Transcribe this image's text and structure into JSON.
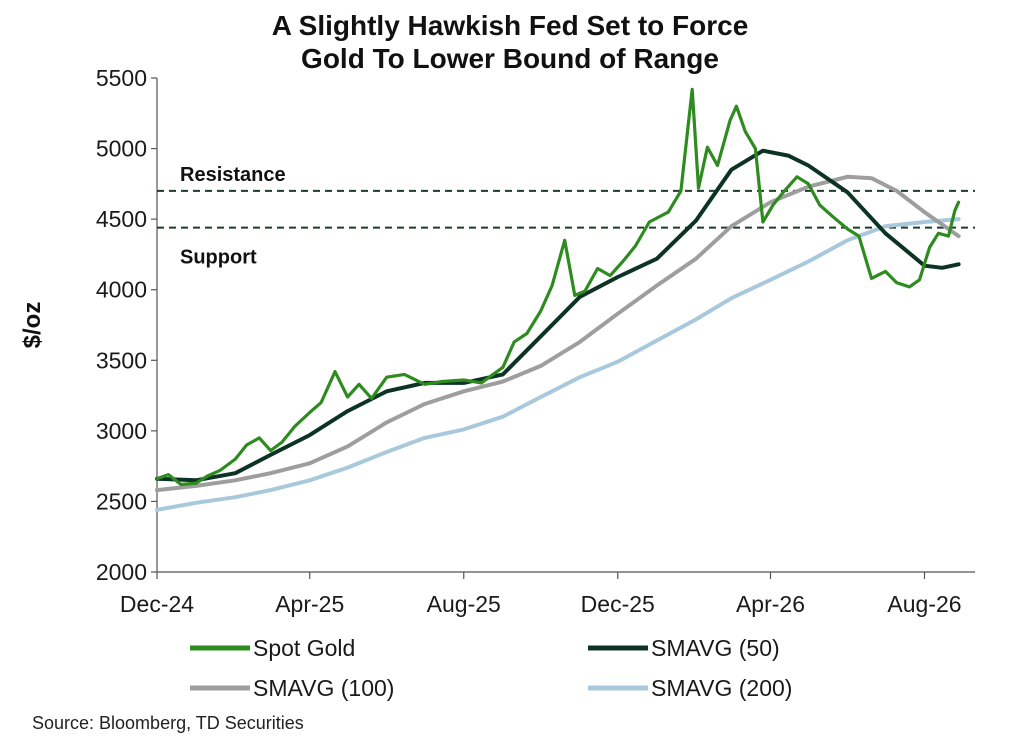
{
  "chart_data": {
    "type": "line",
    "title_lines": [
      "A Slightly Hawkish Fed Set to Force",
      "Gold To Lower Bound of Range"
    ],
    "ylabel": "$/oz",
    "xlabel": "",
    "ylim": [
      2000,
      5500
    ],
    "yticks": [
      2000,
      2500,
      3000,
      3500,
      4000,
      4500,
      5000,
      5500
    ],
    "xlim": [
      "2024-12-01",
      "2026-09-10"
    ],
    "xticks": [
      {
        "date": "2024-12-01",
        "label": "Dec-24"
      },
      {
        "date": "2025-04-01",
        "label": "Apr-25"
      },
      {
        "date": "2025-08-01",
        "label": "Aug-25"
      },
      {
        "date": "2025-12-01",
        "label": "Dec-25"
      },
      {
        "date": "2026-04-01",
        "label": "Apr-26"
      },
      {
        "date": "2026-08-01",
        "label": "Aug-26"
      }
    ],
    "grid": false,
    "legend_placement": "bottom",
    "reference_lines": [
      {
        "label": "Resistance",
        "value": 4700,
        "style": "dashed",
        "color": "#1f3d2b"
      },
      {
        "label": "Support",
        "value": 4440,
        "style": "dashed",
        "color": "#1f3d2b"
      }
    ],
    "series": [
      {
        "name": "Spot Gold",
        "color": "#2e8b1f",
        "points": [
          [
            "2024-12-01",
            2660
          ],
          [
            "2024-12-10",
            2690
          ],
          [
            "2024-12-20",
            2620
          ],
          [
            "2025-01-01",
            2630
          ],
          [
            "2025-01-10",
            2680
          ],
          [
            "2025-01-20",
            2720
          ],
          [
            "2025-02-01",
            2800
          ],
          [
            "2025-02-10",
            2900
          ],
          [
            "2025-02-20",
            2950
          ],
          [
            "2025-03-01",
            2860
          ],
          [
            "2025-03-10",
            2920
          ],
          [
            "2025-03-20",
            3030
          ],
          [
            "2025-04-01",
            3130
          ],
          [
            "2025-04-10",
            3200
          ],
          [
            "2025-04-21",
            3420
          ],
          [
            "2025-05-01",
            3240
          ],
          [
            "2025-05-10",
            3330
          ],
          [
            "2025-05-20",
            3230
          ],
          [
            "2025-06-01",
            3380
          ],
          [
            "2025-06-15",
            3400
          ],
          [
            "2025-07-01",
            3330
          ],
          [
            "2025-07-15",
            3350
          ],
          [
            "2025-08-01",
            3360
          ],
          [
            "2025-08-15",
            3340
          ],
          [
            "2025-09-01",
            3450
          ],
          [
            "2025-09-10",
            3630
          ],
          [
            "2025-09-20",
            3690
          ],
          [
            "2025-10-01",
            3850
          ],
          [
            "2025-10-10",
            4030
          ],
          [
            "2025-10-20",
            4350
          ],
          [
            "2025-10-28",
            3960
          ],
          [
            "2025-11-05",
            3990
          ],
          [
            "2025-11-15",
            4150
          ],
          [
            "2025-11-25",
            4100
          ],
          [
            "2025-12-05",
            4200
          ],
          [
            "2025-12-15",
            4310
          ],
          [
            "2025-12-26",
            4480
          ],
          [
            "2026-01-10",
            4550
          ],
          [
            "2026-01-20",
            4700
          ],
          [
            "2026-01-29",
            5420
          ],
          [
            "2026-02-03",
            4720
          ],
          [
            "2026-02-10",
            5010
          ],
          [
            "2026-02-18",
            4880
          ],
          [
            "2026-02-28",
            5200
          ],
          [
            "2026-03-05",
            5300
          ],
          [
            "2026-03-12",
            5120
          ],
          [
            "2026-03-20",
            5000
          ],
          [
            "2026-03-26",
            4480
          ],
          [
            "2026-04-03",
            4600
          ],
          [
            "2026-04-12",
            4700
          ],
          [
            "2026-04-22",
            4800
          ],
          [
            "2026-05-01",
            4750
          ],
          [
            "2026-05-10",
            4600
          ],
          [
            "2026-05-20",
            4520
          ],
          [
            "2026-06-01",
            4430
          ],
          [
            "2026-06-10",
            4380
          ],
          [
            "2026-06-20",
            4080
          ],
          [
            "2026-07-01",
            4130
          ],
          [
            "2026-07-10",
            4050
          ],
          [
            "2026-07-20",
            4020
          ],
          [
            "2026-07-28",
            4070
          ],
          [
            "2026-08-05",
            4300
          ],
          [
            "2026-08-12",
            4400
          ],
          [
            "2026-08-20",
            4380
          ],
          [
            "2026-08-25",
            4560
          ],
          [
            "2026-08-28",
            4620
          ]
        ]
      },
      {
        "name": "SMAVG (50)",
        "color": "#0d3324",
        "points": [
          [
            "2024-12-01",
            2660
          ],
          [
            "2025-01-01",
            2650
          ],
          [
            "2025-02-01",
            2700
          ],
          [
            "2025-03-01",
            2830
          ],
          [
            "2025-04-01",
            2970
          ],
          [
            "2025-05-01",
            3140
          ],
          [
            "2025-06-01",
            3280
          ],
          [
            "2025-07-01",
            3340
          ],
          [
            "2025-08-01",
            3340
          ],
          [
            "2025-09-01",
            3400
          ],
          [
            "2025-10-01",
            3670
          ],
          [
            "2025-11-01",
            3950
          ],
          [
            "2025-12-01",
            4090
          ],
          [
            "2026-01-01",
            4220
          ],
          [
            "2026-02-01",
            4490
          ],
          [
            "2026-03-01",
            4850
          ],
          [
            "2026-03-26",
            4985
          ],
          [
            "2026-04-15",
            4950
          ],
          [
            "2026-05-01",
            4880
          ],
          [
            "2026-06-01",
            4690
          ],
          [
            "2026-07-01",
            4400
          ],
          [
            "2026-08-01",
            4170
          ],
          [
            "2026-08-15",
            4155
          ],
          [
            "2026-08-28",
            4180
          ]
        ]
      },
      {
        "name": "SMAVG (100)",
        "color": "#9e9e9e",
        "points": [
          [
            "2024-12-01",
            2580
          ],
          [
            "2025-01-01",
            2610
          ],
          [
            "2025-02-01",
            2650
          ],
          [
            "2025-03-01",
            2700
          ],
          [
            "2025-04-01",
            2770
          ],
          [
            "2025-05-01",
            2890
          ],
          [
            "2025-06-01",
            3060
          ],
          [
            "2025-07-01",
            3190
          ],
          [
            "2025-08-01",
            3280
          ],
          [
            "2025-09-01",
            3350
          ],
          [
            "2025-10-01",
            3460
          ],
          [
            "2025-11-01",
            3630
          ],
          [
            "2025-12-01",
            3830
          ],
          [
            "2026-01-01",
            4030
          ],
          [
            "2026-02-01",
            4220
          ],
          [
            "2026-03-01",
            4450
          ],
          [
            "2026-04-01",
            4620
          ],
          [
            "2026-05-01",
            4730
          ],
          [
            "2026-06-01",
            4800
          ],
          [
            "2026-06-20",
            4790
          ],
          [
            "2026-07-10",
            4700
          ],
          [
            "2026-08-01",
            4550
          ],
          [
            "2026-08-28",
            4380
          ]
        ]
      },
      {
        "name": "SMAVG (200)",
        "color": "#a8c8db",
        "points": [
          [
            "2024-12-01",
            2440
          ],
          [
            "2025-01-01",
            2490
          ],
          [
            "2025-02-01",
            2530
          ],
          [
            "2025-03-01",
            2580
          ],
          [
            "2025-04-01",
            2650
          ],
          [
            "2025-05-01",
            2740
          ],
          [
            "2025-06-01",
            2850
          ],
          [
            "2025-07-01",
            2950
          ],
          [
            "2025-08-01",
            3010
          ],
          [
            "2025-09-01",
            3100
          ],
          [
            "2025-10-01",
            3240
          ],
          [
            "2025-11-01",
            3380
          ],
          [
            "2025-12-01",
            3490
          ],
          [
            "2026-01-01",
            3640
          ],
          [
            "2026-02-01",
            3790
          ],
          [
            "2026-03-01",
            3940
          ],
          [
            "2026-04-01",
            4070
          ],
          [
            "2026-05-01",
            4200
          ],
          [
            "2026-06-01",
            4350
          ],
          [
            "2026-07-01",
            4450
          ],
          [
            "2026-08-01",
            4480
          ],
          [
            "2026-08-28",
            4500
          ]
        ]
      }
    ]
  },
  "source": "Source: Bloomberg, TD Securities"
}
